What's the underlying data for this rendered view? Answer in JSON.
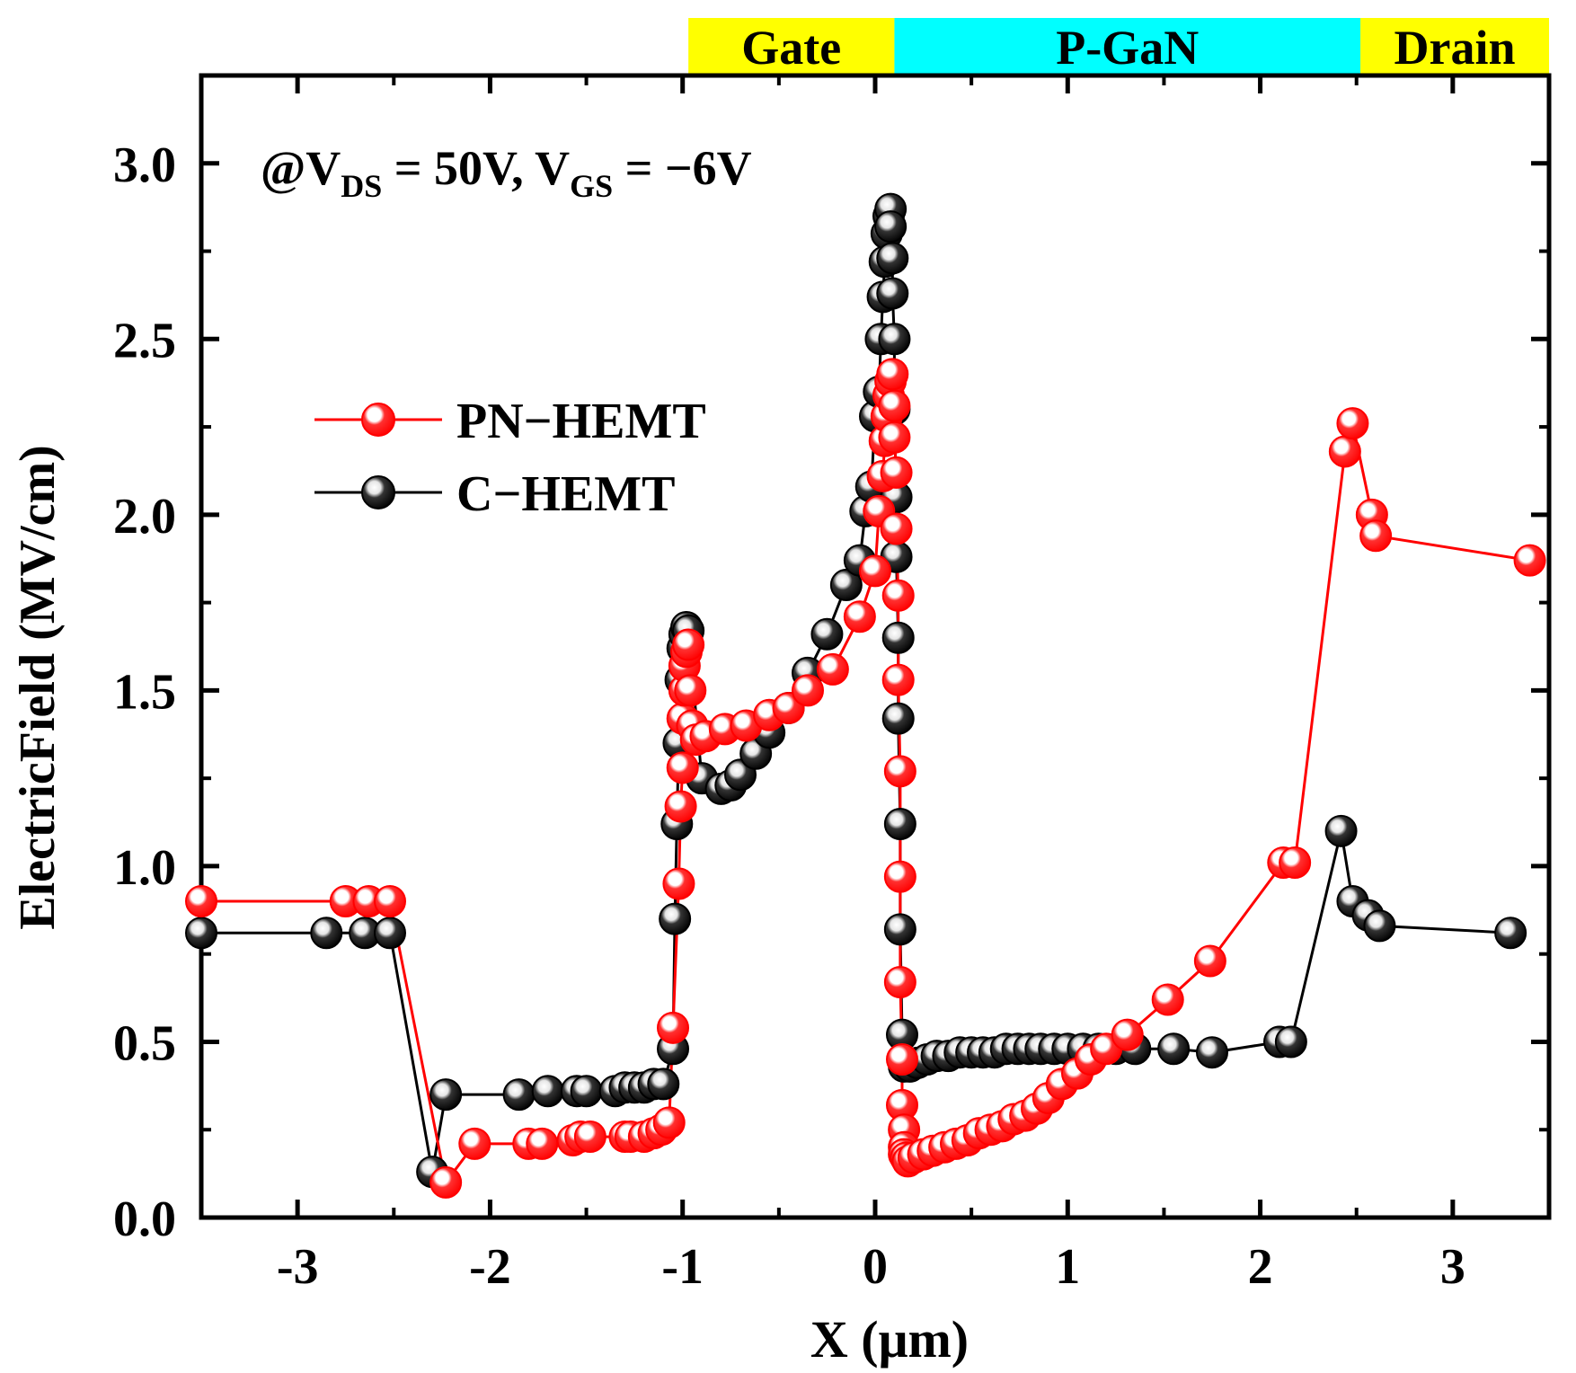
{
  "chart_data": {
    "type": "scatter",
    "xlabel": "X (μm)",
    "ylabel": "ElectricField (MV/cm)",
    "xlim": [
      -3.5,
      3.5
    ],
    "ylim": [
      0.0,
      3.25
    ],
    "x_ticks": [
      -3,
      -2,
      -1,
      0,
      1,
      2,
      3
    ],
    "x_tick_labels": [
      "-3",
      "-2",
      "-1",
      "0",
      "1",
      "2",
      "3"
    ],
    "y_ticks": [
      0.0,
      0.5,
      1.0,
      1.5,
      2.0,
      2.5,
      3.0
    ],
    "y_tick_labels": [
      "0.0",
      "0.5",
      "1.0",
      "1.5",
      "2.0",
      "2.5",
      "3.0"
    ],
    "annotation": {
      "prefix": "@V",
      "sub1": "DS",
      "mid": " = 50V, V",
      "sub2": "GS",
      "suffix": " = −6V"
    },
    "regions": [
      {
        "label": "Gate",
        "x_start": -0.97,
        "x_end": 0.1,
        "color": "#ffff00"
      },
      {
        "label": "P-GaN",
        "x_start": 0.1,
        "x_end": 2.52,
        "color": "#00ffff"
      },
      {
        "label": "Drain",
        "x_start": 2.52,
        "x_end": 3.5,
        "color": "#ffff00"
      }
    ],
    "legend_position": "left-center",
    "series": [
      {
        "name": "PN−HEMT",
        "color": "#ff0000",
        "line_color": "#ff0000",
        "x": [
          -3.5,
          -2.75,
          -2.63,
          -2.52,
          -2.23,
          -2.08,
          -1.8,
          -1.73,
          -1.57,
          -1.53,
          -1.48,
          -1.3,
          -1.27,
          -1.2,
          -1.15,
          -1.11,
          -1.07,
          -1.05,
          -1.02,
          -1.01,
          -1.0,
          -1.0,
          -0.99,
          -0.99,
          -0.98,
          -0.97,
          -0.96,
          -0.95,
          -0.93,
          -0.88,
          -0.78,
          -0.67,
          -0.55,
          -0.45,
          -0.35,
          -0.22,
          -0.08,
          0.0,
          0.02,
          0.04,
          0.05,
          0.06,
          0.07,
          0.08,
          0.09,
          0.1,
          0.1,
          0.11,
          0.11,
          0.12,
          0.12,
          0.13,
          0.13,
          0.13,
          0.14,
          0.14,
          0.15,
          0.15,
          0.15,
          0.16,
          0.17,
          0.2,
          0.25,
          0.3,
          0.36,
          0.42,
          0.48,
          0.54,
          0.6,
          0.66,
          0.72,
          0.78,
          0.84,
          0.9,
          0.97,
          1.05,
          1.12,
          1.2,
          1.31,
          1.52,
          1.74,
          2.12,
          2.18,
          2.44,
          2.48,
          2.58,
          2.6,
          3.4
        ],
        "y": [
          0.9,
          0.9,
          0.9,
          0.9,
          0.1,
          0.21,
          0.21,
          0.21,
          0.22,
          0.23,
          0.23,
          0.23,
          0.23,
          0.23,
          0.24,
          0.25,
          0.27,
          0.54,
          0.95,
          1.17,
          1.28,
          1.42,
          1.5,
          1.57,
          1.61,
          1.63,
          1.5,
          1.4,
          1.36,
          1.37,
          1.39,
          1.4,
          1.43,
          1.45,
          1.5,
          1.56,
          1.71,
          1.84,
          2.01,
          2.11,
          2.21,
          2.28,
          2.34,
          2.38,
          2.4,
          2.31,
          2.22,
          2.12,
          1.96,
          1.77,
          1.53,
          1.27,
          0.97,
          0.67,
          0.45,
          0.32,
          0.25,
          0.2,
          0.18,
          0.17,
          0.16,
          0.17,
          0.18,
          0.19,
          0.2,
          0.21,
          0.22,
          0.24,
          0.25,
          0.26,
          0.28,
          0.29,
          0.31,
          0.34,
          0.38,
          0.41,
          0.45,
          0.48,
          0.52,
          0.62,
          0.73,
          1.01,
          1.01,
          2.18,
          2.26,
          2.0,
          1.94,
          1.87
        ]
      },
      {
        "name": "C−HEMT",
        "color": "#000000",
        "line_color": "#000000",
        "x": [
          -3.5,
          -2.85,
          -2.65,
          -2.52,
          -2.3,
          -2.23,
          -1.85,
          -1.7,
          -1.55,
          -1.5,
          -1.35,
          -1.3,
          -1.25,
          -1.2,
          -1.15,
          -1.1,
          -1.05,
          -1.04,
          -1.03,
          -1.02,
          -1.01,
          -1.0,
          -0.99,
          -0.98,
          -0.97,
          -0.9,
          -0.8,
          -0.75,
          -0.7,
          -0.62,
          -0.55,
          -0.45,
          -0.35,
          -0.25,
          -0.15,
          -0.08,
          -0.05,
          -0.02,
          0.0,
          0.02,
          0.03,
          0.04,
          0.05,
          0.06,
          0.07,
          0.08,
          0.08,
          0.09,
          0.09,
          0.1,
          0.1,
          0.11,
          0.11,
          0.12,
          0.12,
          0.13,
          0.13,
          0.14,
          0.15,
          0.18,
          0.22,
          0.27,
          0.32,
          0.38,
          0.44,
          0.5,
          0.56,
          0.62,
          0.68,
          0.74,
          0.8,
          0.86,
          0.93,
          1.0,
          1.08,
          1.16,
          1.25,
          1.35,
          1.55,
          1.75,
          2.1,
          2.16,
          2.42,
          2.48,
          2.56,
          2.62,
          3.3
        ],
        "y": [
          0.81,
          0.81,
          0.81,
          0.81,
          0.13,
          0.35,
          0.35,
          0.36,
          0.36,
          0.36,
          0.36,
          0.37,
          0.37,
          0.37,
          0.38,
          0.38,
          0.48,
          0.85,
          1.12,
          1.35,
          1.53,
          1.62,
          1.66,
          1.68,
          1.67,
          1.25,
          1.22,
          1.23,
          1.26,
          1.32,
          1.38,
          1.45,
          1.55,
          1.66,
          1.8,
          1.87,
          2.01,
          2.08,
          2.28,
          2.35,
          2.5,
          2.62,
          2.72,
          2.8,
          2.85,
          2.87,
          2.82,
          2.73,
          2.63,
          2.5,
          2.3,
          2.05,
          1.88,
          1.65,
          1.42,
          1.12,
          0.82,
          0.52,
          0.43,
          0.43,
          0.44,
          0.45,
          0.46,
          0.46,
          0.47,
          0.47,
          0.47,
          0.47,
          0.48,
          0.48,
          0.48,
          0.48,
          0.48,
          0.48,
          0.48,
          0.48,
          0.48,
          0.48,
          0.48,
          0.47,
          0.5,
          0.5,
          1.1,
          0.9,
          0.86,
          0.83,
          0.81
        ]
      }
    ]
  }
}
